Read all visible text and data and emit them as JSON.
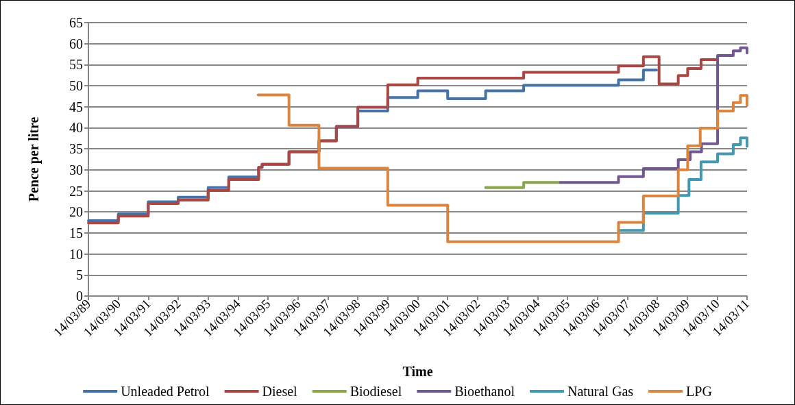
{
  "chart_data": {
    "type": "step",
    "xlabel": "Time",
    "ylabel": "Pence per litre",
    "xlim": [
      "1989-03-14",
      "2011-03-14"
    ],
    "xticks": [
      {
        "value": "1989-03-14",
        "label": "14/03/89"
      },
      {
        "value": "1990-03-14",
        "label": "14/03/90"
      },
      {
        "value": "1991-03-14",
        "label": "14/03/91"
      },
      {
        "value": "1992-03-14",
        "label": "14/03/92"
      },
      {
        "value": "1993-03-14",
        "label": "14/03/93"
      },
      {
        "value": "1994-03-14",
        "label": "14/03/94"
      },
      {
        "value": "1995-03-14",
        "label": "14/03/95"
      },
      {
        "value": "1996-03-14",
        "label": "14/03/96"
      },
      {
        "value": "1997-03-14",
        "label": "14/03/97"
      },
      {
        "value": "1998-03-14",
        "label": "14/03/98"
      },
      {
        "value": "1999-03-14",
        "label": "14/03/99"
      },
      {
        "value": "2000-03-14",
        "label": "14/03/00"
      },
      {
        "value": "2001-03-14",
        "label": "14/03/01"
      },
      {
        "value": "2002-03-14",
        "label": "14/03/02"
      },
      {
        "value": "2003-03-14",
        "label": "14/03/03"
      },
      {
        "value": "2004-03-14",
        "label": "14/03/04"
      },
      {
        "value": "2005-03-14",
        "label": "14/03/05"
      },
      {
        "value": "2006-03-14",
        "label": "14/03/06"
      },
      {
        "value": "2007-03-14",
        "label": "14/03/07"
      },
      {
        "value": "2008-03-14",
        "label": "14/03/08"
      },
      {
        "value": "2009-03-14",
        "label": "14/03/09"
      },
      {
        "value": "2010-03-14",
        "label": "14/03/10"
      },
      {
        "value": "2011-03-14",
        "label": "14/03/11"
      }
    ],
    "ylim": [
      0,
      65
    ],
    "yticks": [
      0,
      5,
      10,
      15,
      20,
      25,
      30,
      35,
      40,
      45,
      50,
      55,
      60,
      65
    ],
    "grid": "y",
    "legend": "bottom",
    "marker": "none",
    "line_style": "solid",
    "series": [
      {
        "name": "Unleaded Petrol",
        "color": "#4572a7",
        "x": [
          "1989-03-14",
          "1990-03-14",
          "1991-03-14",
          "1992-03-14",
          "1993-03-14",
          "1993-11-20",
          "1994-11-20",
          "1995-01-01",
          "1995-11-25",
          "1996-11-25",
          "1997-06-25",
          "1998-03-14",
          "1999-03-14",
          "2000-03-14",
          "2001-03-14",
          "2002-06-20",
          "2003-09-27",
          "2006-11-27",
          "2007-09-27",
          "2008-03-05"
        ],
        "values": [
          17.9,
          19.5,
          22.4,
          23.5,
          25.8,
          28.3,
          30.6,
          31.3,
          34.3,
          36.9,
          40.3,
          44.0,
          47.2,
          48.8,
          46.9,
          48.8,
          50.1,
          51.4,
          53.7,
          53.7
        ]
      },
      {
        "name": "Diesel",
        "color": "#aa4643",
        "x": [
          "1989-03-14",
          "1990-03-14",
          "1991-03-14",
          "1992-03-14",
          "1993-03-14",
          "1993-11-20",
          "1994-11-20",
          "1995-01-01",
          "1995-11-25",
          "1996-11-25",
          "1997-06-25",
          "1998-03-14",
          "1999-03-14",
          "2000-03-14",
          "2003-09-27",
          "2006-11-27",
          "2007-09-27",
          "2008-04-05",
          "2008-11-25",
          "2009-03-20",
          "2009-08-30",
          "2010-03-10"
        ],
        "values": [
          17.4,
          19.0,
          22.0,
          22.8,
          25.1,
          27.7,
          30.6,
          31.3,
          34.3,
          36.9,
          40.3,
          44.9,
          50.2,
          51.8,
          53.2,
          54.7,
          56.9,
          50.4,
          52.4,
          54.1,
          56.2,
          56.2
        ]
      },
      {
        "name": "Biodiesel",
        "color": "#89a54e",
        "x": [
          "2002-06-20",
          "2003-09-27",
          "2004-12-18"
        ],
        "values": [
          25.8,
          27.0,
          27.0
        ]
      },
      {
        "name": "Bioethanol",
        "color": "#71588f",
        "x": [
          "2004-12-18",
          "2006-11-27",
          "2007-09-27",
          "2008-11-25",
          "2009-04-20",
          "2009-09-05",
          "2010-03-20",
          "2010-09-27",
          "2010-12-24",
          "2011-03-14"
        ],
        "values": [
          27.0,
          28.4,
          30.3,
          32.4,
          34.3,
          36.2,
          57.2,
          58.3,
          59.0,
          57.8
        ]
      },
      {
        "name": "Natural Gas",
        "color": "#4198af",
        "x": [
          "2006-11-27",
          "2007-09-27",
          "2008-11-25",
          "2009-04-05",
          "2009-08-30",
          "2010-03-20",
          "2010-09-27",
          "2010-12-24",
          "2011-03-14"
        ],
        "values": [
          15.6,
          19.7,
          23.9,
          27.7,
          31.9,
          33.8,
          36.0,
          37.6,
          35.6
        ]
      },
      {
        "name": "LPG",
        "color": "#db843d",
        "x": [
          "1994-11-14",
          "1995-11-25",
          "1996-11-25",
          "1999-03-14",
          "2001-03-14",
          "2006-11-27",
          "2007-09-27",
          "2008-11-25",
          "2009-03-20",
          "2009-08-20",
          "2010-03-20",
          "2010-09-27",
          "2010-12-24",
          "2011-03-14"
        ],
        "values": [
          47.8,
          40.6,
          30.4,
          21.6,
          12.9,
          17.5,
          23.8,
          30.0,
          35.7,
          39.9,
          44.0,
          46.0,
          47.7,
          45.3
        ]
      }
    ]
  }
}
